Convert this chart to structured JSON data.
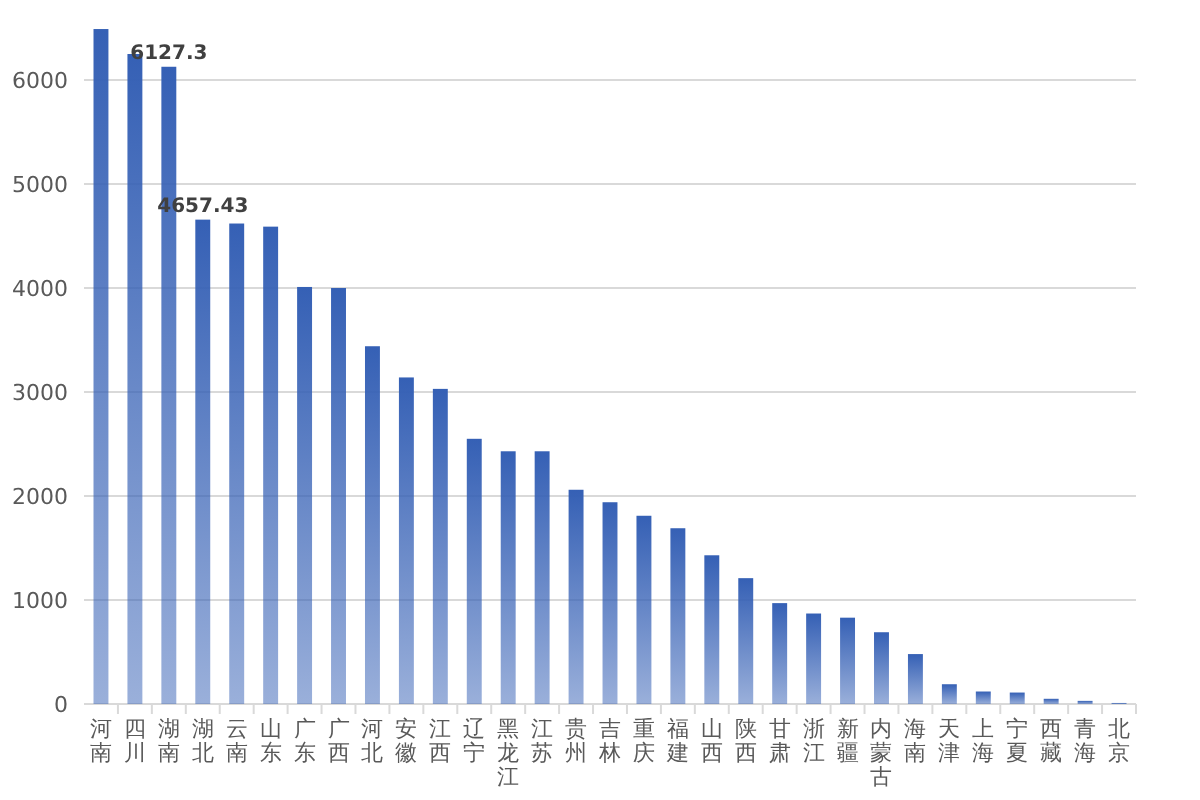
{
  "chart_data": {
    "type": "bar",
    "categories": [
      "河南",
      "四川",
      "湖南",
      "湖北",
      "云南",
      "山东",
      "广东",
      "广西",
      "河北",
      "安徽",
      "江西",
      "辽宁",
      "黑龙江",
      "江苏",
      "贵州",
      "吉林",
      "重庆",
      "福建",
      "山西",
      "陕西",
      "甘肃",
      "浙江",
      "新疆",
      "内蒙古",
      "海南",
      "天津",
      "上海",
      "宁夏",
      "西藏",
      "青海",
      "北京"
    ],
    "values": [
      6490,
      6250,
      6127.3,
      4657.43,
      4620,
      4590,
      4010,
      4000,
      3440,
      3140,
      3030,
      2550,
      2430,
      2430,
      2060,
      1940,
      1810,
      1690,
      1430,
      1210,
      970,
      870,
      830,
      690,
      480,
      190,
      120,
      110,
      50,
      30,
      10
    ],
    "value_labels": [
      null,
      null,
      "6127.3",
      "4657.43",
      null,
      null,
      null,
      null,
      null,
      null,
      null,
      null,
      null,
      null,
      null,
      null,
      null,
      null,
      null,
      null,
      null,
      null,
      null,
      null,
      null,
      null,
      null,
      null,
      null,
      null,
      null
    ],
    "color": "#3560b5",
    "ylim": [
      0,
      6500
    ],
    "yticks": [
      0,
      1000,
      2000,
      3000,
      4000,
      5000,
      6000
    ],
    "grid": "y"
  }
}
